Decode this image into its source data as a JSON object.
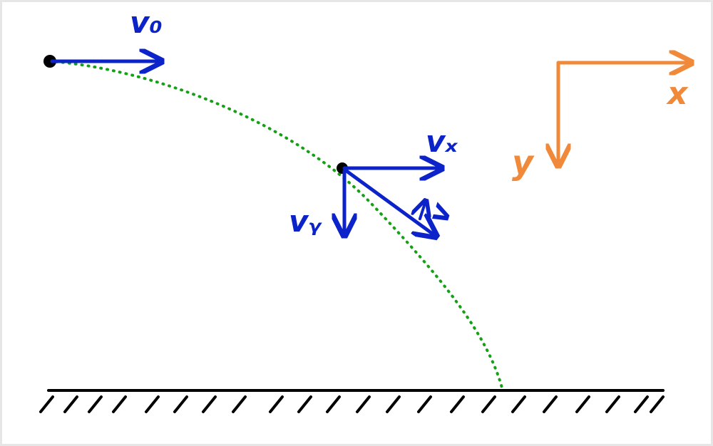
{
  "diagram": {
    "labels": {
      "initial_velocity": "v₀",
      "velocity_x": "vₓ",
      "velocity_y": "vᵧ",
      "velocity": "v",
      "axis_x": "x",
      "axis_y": "y"
    },
    "colors": {
      "vector": "#0b23c9",
      "trajectory": "#16a016",
      "axes": "#f08a3a",
      "ground": "#000000",
      "point": "#000000",
      "frame_border": "#e6e6e6"
    },
    "icons": {
      "initial_point": "black-dot",
      "current_point": "black-dot",
      "ground": "hatched-ground"
    }
  }
}
